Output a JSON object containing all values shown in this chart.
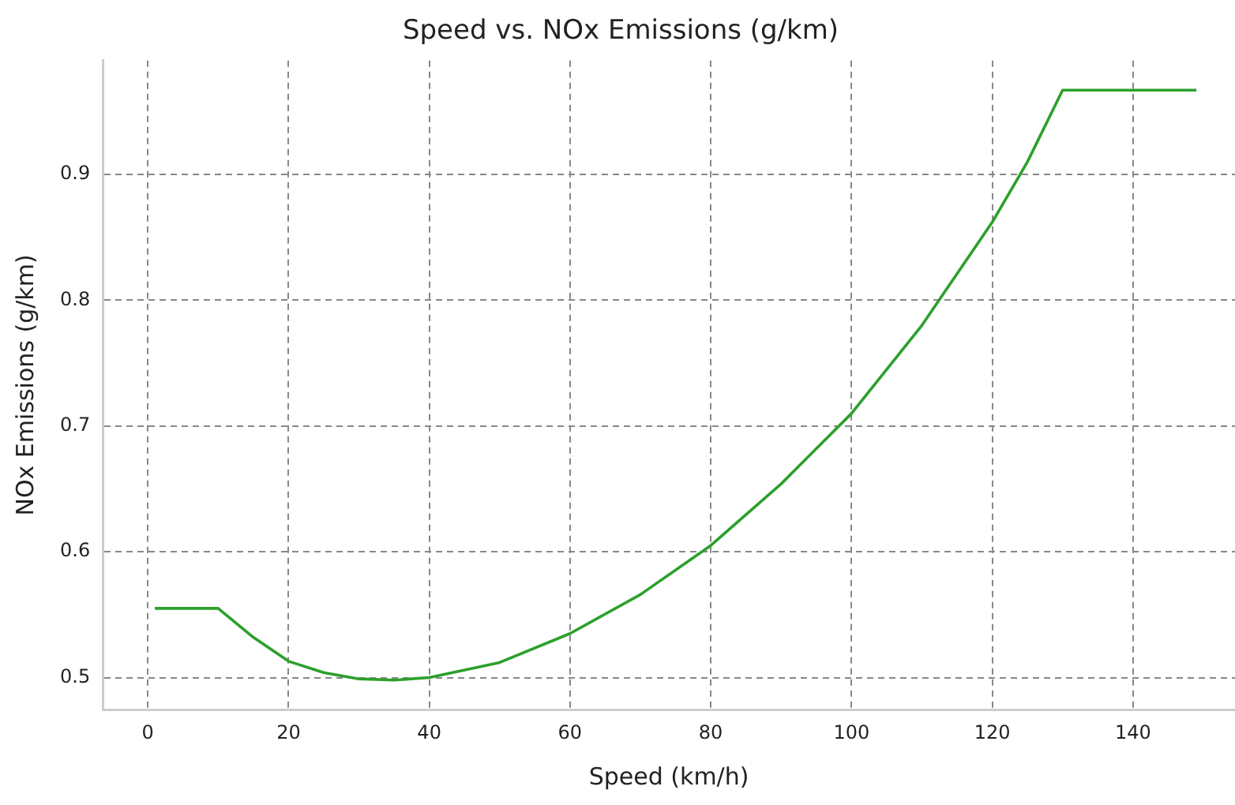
{
  "chart_data": {
    "type": "line",
    "title": "Speed vs. NOx Emissions (g/km)",
    "xlabel": "Speed (km/h)",
    "ylabel": "NOx Emissions (g/km)",
    "series": [
      {
        "color": "#2ca02c",
        "x": [
          1,
          10,
          15,
          20,
          25,
          30,
          35,
          40,
          50,
          60,
          70,
          80,
          90,
          100,
          110,
          120,
          125,
          130,
          149
        ],
        "values": [
          0.555,
          0.555,
          0.532,
          0.513,
          0.504,
          0.499,
          0.498,
          0.5,
          0.512,
          0.535,
          0.566,
          0.605,
          0.654,
          0.71,
          0.78,
          0.862,
          0.91,
          0.967,
          0.967
        ]
      }
    ],
    "xlim": [
      -6.4,
      154.5
    ],
    "xticks": [
      0,
      20,
      40,
      60,
      80,
      100,
      120,
      140
    ],
    "ylim": [
      0.4745,
      0.9905
    ],
    "yticks": [
      0.5,
      0.6,
      0.7,
      0.8,
      0.9
    ],
    "grid": true,
    "legend": false,
    "marker": "none",
    "line_style": "solid"
  }
}
